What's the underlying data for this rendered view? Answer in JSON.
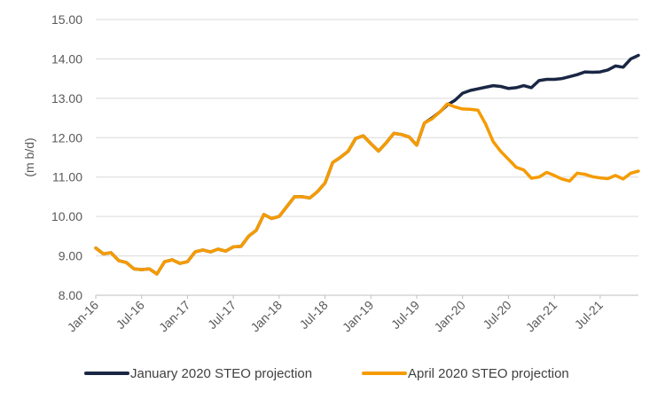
{
  "chart_data": {
    "type": "line",
    "title": "",
    "xlabel": "",
    "ylabel": "(m b/d)",
    "ylim": [
      8,
      15
    ],
    "yticks": [
      "8.00",
      "9.00",
      "10.00",
      "11.00",
      "12.00",
      "13.00",
      "14.00",
      "15.00"
    ],
    "xticks": [
      "Jan-16",
      "Jul-16",
      "Jan-17",
      "Jul-17",
      "Jan-18",
      "Jul-18",
      "Jan-19",
      "Jul-19",
      "Jan-20",
      "Jul-20",
      "Jan-21",
      "Jul-21"
    ],
    "x_start": "Jan-16",
    "x_end": "Dec-21",
    "grid": "horizontal",
    "legend_position": "bottom",
    "series": [
      {
        "name": "January 2020 STEO projection",
        "color": "#1a2744",
        "start": "Jan-16",
        "values": [
          9.2,
          9.05,
          9.08,
          8.88,
          8.83,
          8.67,
          8.65,
          8.67,
          8.54,
          8.85,
          8.9,
          8.81,
          8.85,
          9.1,
          9.15,
          9.1,
          9.17,
          9.12,
          9.23,
          9.24,
          9.5,
          9.65,
          10.05,
          9.95,
          10.0,
          10.25,
          10.5,
          10.5,
          10.47,
          10.63,
          10.85,
          11.37,
          11.5,
          11.65,
          11.98,
          12.05,
          11.85,
          11.66,
          11.87,
          12.11,
          12.08,
          12.02,
          11.81,
          12.37,
          12.5,
          12.65,
          12.83,
          12.95,
          13.13,
          13.2,
          13.24,
          13.28,
          13.32,
          13.3,
          13.25,
          13.27,
          13.32,
          13.27,
          13.45,
          13.48,
          13.48,
          13.5,
          13.55,
          13.6,
          13.67,
          13.66,
          13.67,
          13.72,
          13.82,
          13.79,
          14.0,
          14.09
        ]
      },
      {
        "name": "April 2020 STEO projection",
        "color": "#f59b00",
        "start": "Jan-16",
        "values": [
          9.2,
          9.05,
          9.08,
          8.88,
          8.83,
          8.67,
          8.65,
          8.67,
          8.54,
          8.85,
          8.9,
          8.81,
          8.85,
          9.1,
          9.15,
          9.1,
          9.17,
          9.12,
          9.23,
          9.24,
          9.5,
          9.65,
          10.05,
          9.95,
          10.0,
          10.25,
          10.5,
          10.5,
          10.47,
          10.63,
          10.85,
          11.37,
          11.5,
          11.65,
          11.98,
          12.05,
          11.85,
          11.66,
          11.87,
          12.11,
          12.08,
          12.02,
          11.81,
          12.37,
          12.48,
          12.65,
          12.86,
          12.78,
          12.73,
          12.72,
          12.7,
          12.35,
          11.9,
          11.65,
          11.45,
          11.25,
          11.18,
          10.97,
          11.0,
          11.12,
          11.04,
          10.95,
          10.9,
          11.1,
          11.07,
          11.01,
          10.98,
          10.96,
          11.04,
          10.95,
          11.1,
          11.15
        ]
      }
    ]
  }
}
